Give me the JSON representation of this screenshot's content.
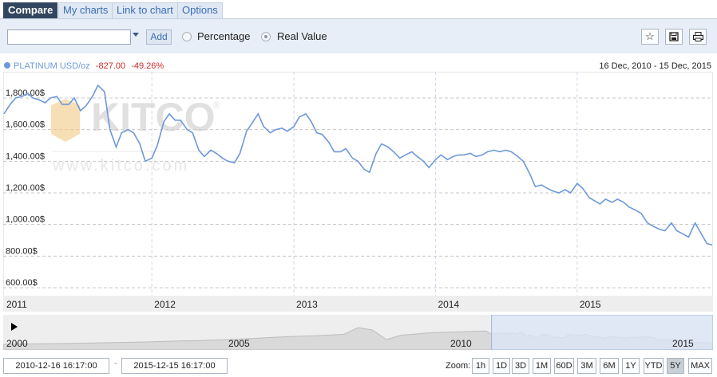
{
  "tabs": [
    "Compare",
    "My charts",
    "Link to chart",
    "Options"
  ],
  "toolbar": {
    "symbol_value": "",
    "add_label": "Add",
    "percentage_label": "Percentage",
    "real_value_label": "Real Value",
    "mode_selected": "Real Value",
    "icons": [
      "star-icon",
      "save-icon",
      "print-icon"
    ]
  },
  "legend": {
    "symbol": "PLATINUM USD/oz",
    "change": "-827.00",
    "change_pct": "-49.26%",
    "series_color": "#6d98d9",
    "date_range": "16 Dec, 2010 - 15 Dec, 2015"
  },
  "chart_data": {
    "type": "line",
    "title": "",
    "xlabel": "",
    "ylabel": "",
    "x_ticks": [
      "2011",
      "2012",
      "2013",
      "2014",
      "2015"
    ],
    "y_ticks": [
      "600.00$",
      "800.00$",
      "1,000.00$",
      "1,200.00$",
      "1,400.00$",
      "1,600.00$",
      "1,800.00$"
    ],
    "ylim": [
      600,
      1900
    ],
    "xlim": [
      "2010-12-16",
      "2015-12-15"
    ],
    "grid": true,
    "series": [
      {
        "name": "PLATINUM USD/oz",
        "color": "#6d98d9",
        "x": [
          "2010-12-16",
          "2011-01-01",
          "2011-01-15",
          "2011-02-01",
          "2011-02-15",
          "2011-03-01",
          "2011-03-15",
          "2011-04-01",
          "2011-04-15",
          "2011-05-01",
          "2011-05-15",
          "2011-06-01",
          "2011-06-15",
          "2011-07-01",
          "2011-07-15",
          "2011-08-01",
          "2011-08-15",
          "2011-09-01",
          "2011-09-15",
          "2011-10-01",
          "2011-10-15",
          "2011-11-01",
          "2011-11-15",
          "2011-12-01",
          "2011-12-15",
          "2012-01-01",
          "2012-01-15",
          "2012-02-01",
          "2012-02-15",
          "2012-03-01",
          "2012-03-15",
          "2012-04-01",
          "2012-04-15",
          "2012-05-01",
          "2012-05-15",
          "2012-06-01",
          "2012-06-15",
          "2012-07-01",
          "2012-07-15",
          "2012-08-01",
          "2012-08-15",
          "2012-09-01",
          "2012-09-15",
          "2012-10-01",
          "2012-10-15",
          "2012-11-01",
          "2012-11-15",
          "2012-12-01",
          "2012-12-15",
          "2013-01-01",
          "2013-01-15",
          "2013-02-01",
          "2013-02-15",
          "2013-03-01",
          "2013-03-15",
          "2013-04-01",
          "2013-04-15",
          "2013-05-01",
          "2013-05-15",
          "2013-06-01",
          "2013-06-15",
          "2013-07-01",
          "2013-07-15",
          "2013-08-01",
          "2013-08-15",
          "2013-09-01",
          "2013-09-15",
          "2013-10-01",
          "2013-10-15",
          "2013-11-01",
          "2013-11-15",
          "2013-12-01",
          "2013-12-15",
          "2014-01-01",
          "2014-01-15",
          "2014-02-01",
          "2014-02-15",
          "2014-03-01",
          "2014-03-15",
          "2014-04-01",
          "2014-04-15",
          "2014-05-01",
          "2014-05-15",
          "2014-06-01",
          "2014-06-15",
          "2014-07-01",
          "2014-07-15",
          "2014-08-01",
          "2014-08-15",
          "2014-09-01",
          "2014-09-15",
          "2014-10-01",
          "2014-10-15",
          "2014-11-01",
          "2014-11-15",
          "2014-12-01",
          "2014-12-15",
          "2015-01-01",
          "2015-01-15",
          "2015-02-01",
          "2015-02-15",
          "2015-03-01",
          "2015-03-15",
          "2015-04-01",
          "2015-04-15",
          "2015-05-01",
          "2015-05-15",
          "2015-06-01",
          "2015-06-15",
          "2015-07-01",
          "2015-07-15",
          "2015-08-01",
          "2015-08-15",
          "2015-09-01",
          "2015-09-15",
          "2015-10-01",
          "2015-10-15",
          "2015-11-01",
          "2015-11-15",
          "2015-12-01",
          "2015-12-15"
        ],
        "y": [
          1700,
          1760,
          1800,
          1810,
          1830,
          1800,
          1790,
          1770,
          1800,
          1810,
          1760,
          1760,
          1800,
          1720,
          1750,
          1810,
          1880,
          1840,
          1600,
          1490,
          1580,
          1600,
          1580,
          1510,
          1400,
          1420,
          1500,
          1650,
          1700,
          1660,
          1660,
          1600,
          1580,
          1470,
          1430,
          1470,
          1450,
          1420,
          1400,
          1390,
          1450,
          1590,
          1640,
          1700,
          1620,
          1580,
          1600,
          1610,
          1590,
          1620,
          1680,
          1700,
          1650,
          1580,
          1570,
          1520,
          1460,
          1460,
          1480,
          1420,
          1400,
          1350,
          1330,
          1450,
          1510,
          1490,
          1460,
          1420,
          1440,
          1460,
          1430,
          1400,
          1360,
          1410,
          1440,
          1410,
          1430,
          1440,
          1440,
          1450,
          1430,
          1440,
          1460,
          1470,
          1460,
          1470,
          1460,
          1430,
          1400,
          1320,
          1240,
          1250,
          1230,
          1210,
          1200,
          1220,
          1200,
          1260,
          1230,
          1170,
          1150,
          1130,
          1160,
          1140,
          1160,
          1140,
          1110,
          1090,
          1070,
          1010,
          990,
          970,
          960,
          1010,
          960,
          940,
          920,
          1010,
          950,
          880,
          870
        ]
      }
    ]
  },
  "navigator": {
    "labels": [
      "2000",
      "2005",
      "2010",
      "2015"
    ],
    "selection_start_fraction": 0.688,
    "selection_end_fraction": 1.0
  },
  "footer": {
    "from_date": "2010-12-16 16:17:00",
    "dash": "-",
    "to_date": "2015-12-15 16:17:00",
    "zoom_label": "Zoom:",
    "zoom_options": [
      "1h",
      "1D",
      "3D",
      "1M",
      "60D",
      "3M",
      "6M",
      "1Y",
      "YTD",
      "5Y",
      "MAX"
    ],
    "zoom_active": "5Y"
  },
  "watermark": {
    "brand": "KITCO",
    "url": "www.kitco.com"
  }
}
